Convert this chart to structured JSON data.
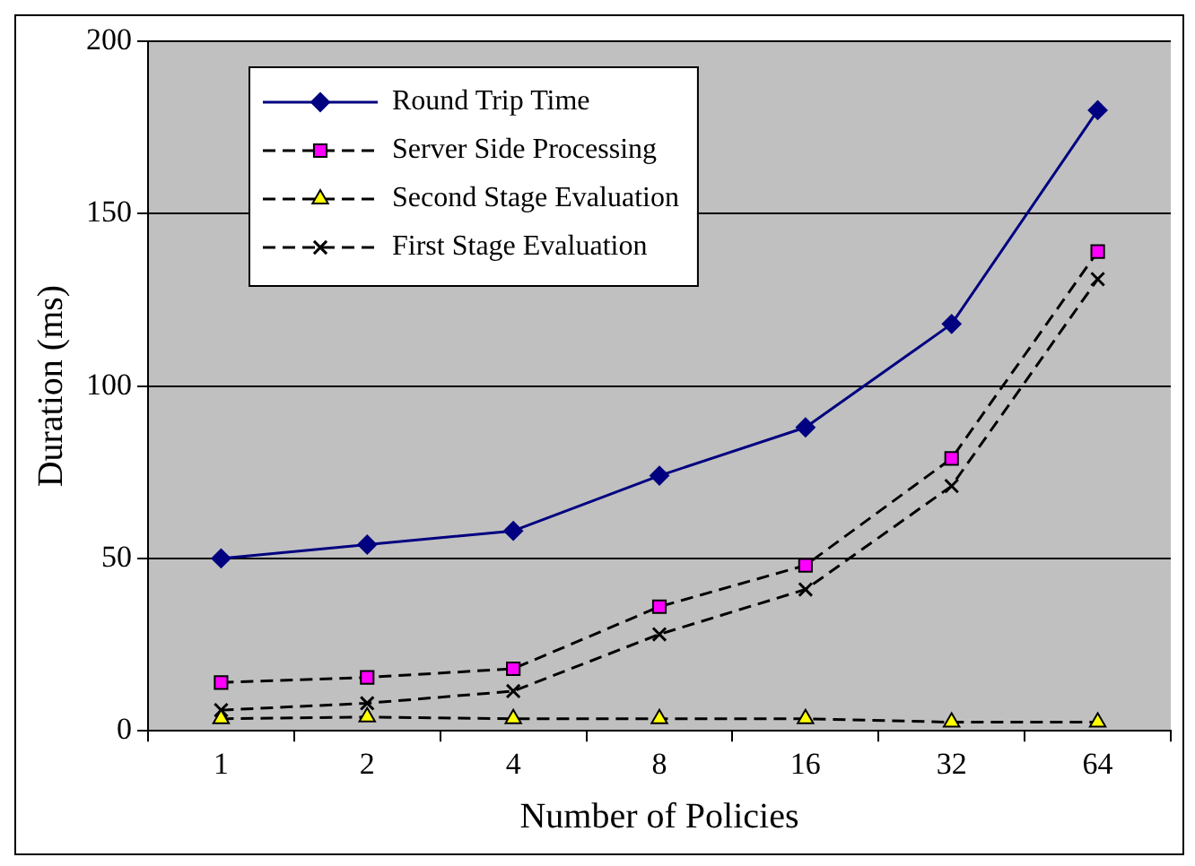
{
  "chart_data": {
    "type": "line",
    "xlabel": "Number of Policies",
    "ylabel": "Duration (ms)",
    "categories": [
      "1",
      "2",
      "4",
      "8",
      "16",
      "32",
      "64"
    ],
    "ylim": [
      0,
      200
    ],
    "yticks": [
      0,
      50,
      100,
      150,
      200
    ],
    "grid": "y",
    "legend": "top left",
    "series": [
      {
        "name": "Round Trip Time",
        "color": "#000080",
        "marker": "diamond",
        "line_style": "solid",
        "values": [
          50,
          54,
          58,
          74,
          88,
          118,
          180
        ]
      },
      {
        "name": "Server Side Processing",
        "color": "#ff00ff",
        "marker": "square",
        "line_style": "dashed",
        "values": [
          14,
          15.5,
          18,
          36,
          48,
          79,
          139
        ]
      },
      {
        "name": "Second Stage Evaluation",
        "color": "#ffff00",
        "marker": "triangle",
        "line_style": "dashed",
        "values": [
          3.5,
          4,
          3.5,
          3.5,
          3.5,
          2.5,
          2.5
        ]
      },
      {
        "name": "First Stage Evaluation",
        "color": "#000000",
        "marker": "cross",
        "line_style": "dashed",
        "values": [
          6,
          8,
          11.5,
          28,
          41,
          71,
          131
        ]
      }
    ]
  }
}
